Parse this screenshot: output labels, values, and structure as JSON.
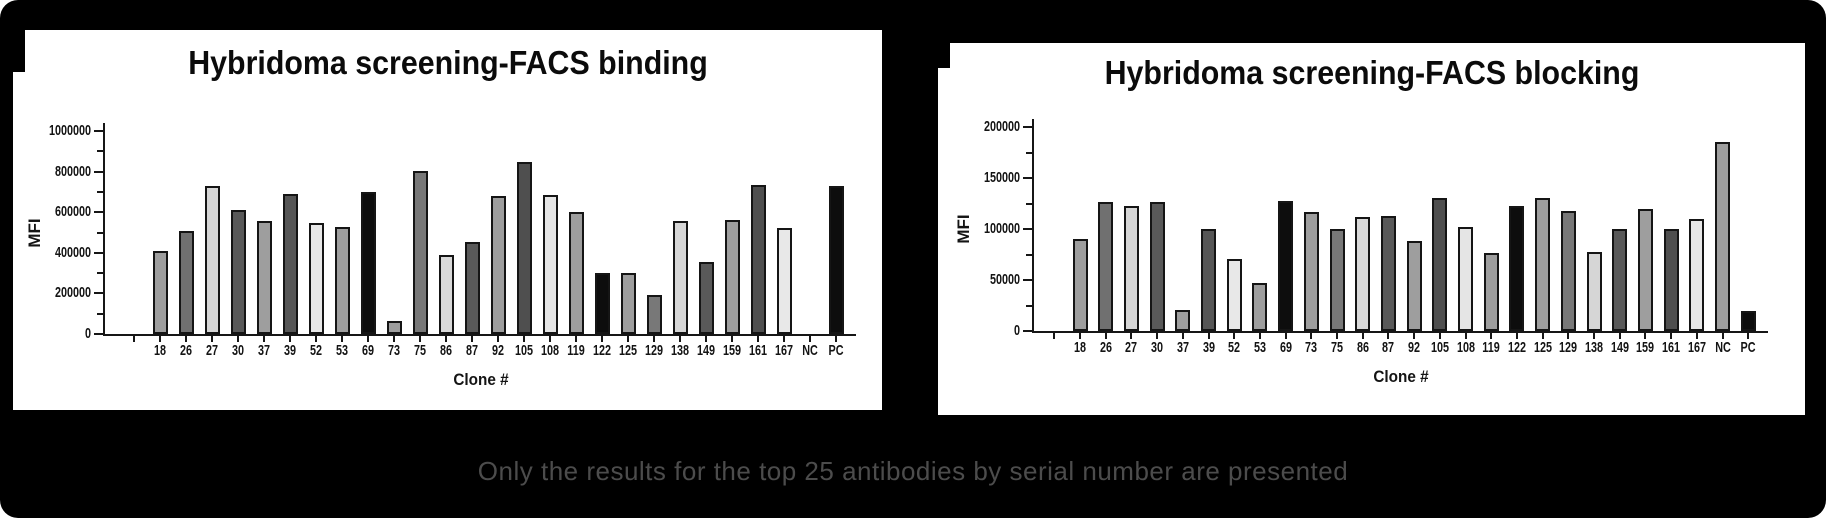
{
  "caption": {
    "text": "Only the results for the top 25 antibodies by serial number are presented"
  },
  "colors": {
    "background": "#000000",
    "panel": "#ffffff",
    "caption_text": "#4c4c4c",
    "bar_border": "#151515",
    "axis": "#161616"
  },
  "chart_data": [
    {
      "type": "bar",
      "title": "Hybridoma screening-FACS binding",
      "xlabel": "Clone #",
      "ylabel": "MFI",
      "ylim": [
        0,
        1000000
      ],
      "ytick_step": 200000,
      "grid": false,
      "legend": false,
      "categories": [
        "18",
        "26",
        "27",
        "30",
        "37",
        "39",
        "52",
        "53",
        "69",
        "73",
        "75",
        "86",
        "87",
        "92",
        "105",
        "108",
        "119",
        "122",
        "125",
        "129",
        "138",
        "149",
        "159",
        "161",
        "167",
        "NC",
        "PC"
      ],
      "values": [
        410000,
        505000,
        730000,
        610000,
        555000,
        690000,
        545000,
        525000,
        700000,
        65000,
        805000,
        390000,
        455000,
        680000,
        845000,
        685000,
        600000,
        300000,
        300000,
        190000,
        555000,
        355000,
        560000,
        735000,
        520000,
        0,
        730000
      ],
      "bar_colors": [
        "#9e9e9e",
        "#707070",
        "#d6d6d6",
        "#595959",
        "#9e9e9e",
        "#565656",
        "#e8e8e8",
        "#9e9e9e",
        "#0d0d0d",
        "#9e9e9e",
        "#787878",
        "#d9d9d9",
        "#595959",
        "#9e9e9e",
        "#4f4f4f",
        "#e5e5e5",
        "#9e9e9e",
        "#0d0d0d",
        "#9e9e9e",
        "#787878",
        "#d6d6d6",
        "#595959",
        "#9e9e9e",
        "#4f4f4f",
        "#e8e8e8",
        "#9e9e9e",
        "#0d0d0d"
      ]
    },
    {
      "type": "bar",
      "title": "Hybridoma screening-FACS blocking",
      "xlabel": "Clone #",
      "ylabel": "MFI",
      "ylim": [
        0,
        200000
      ],
      "ytick_step": 50000,
      "grid": false,
      "legend": false,
      "categories": [
        "18",
        "26",
        "27",
        "30",
        "37",
        "39",
        "52",
        "53",
        "69",
        "73",
        "75",
        "86",
        "87",
        "92",
        "105",
        "108",
        "119",
        "122",
        "125",
        "129",
        "138",
        "149",
        "159",
        "161",
        "167",
        "NC",
        "PC"
      ],
      "values": [
        90000,
        126000,
        123000,
        126000,
        21000,
        100000,
        71000,
        47000,
        127000,
        117000,
        100000,
        112000,
        113000,
        88000,
        130000,
        102000,
        76000,
        123000,
        130000,
        118000,
        77000,
        100000,
        120000,
        100000,
        110000,
        185000,
        20000
      ],
      "bar_colors": [
        "#9e9e9e",
        "#707070",
        "#d6d6d6",
        "#595959",
        "#9e9e9e",
        "#565656",
        "#e8e8e8",
        "#9e9e9e",
        "#0d0d0d",
        "#9e9e9e",
        "#787878",
        "#d9d9d9",
        "#595959",
        "#9e9e9e",
        "#4f4f4f",
        "#e5e5e5",
        "#9e9e9e",
        "#0d0d0d",
        "#9e9e9e",
        "#787878",
        "#d6d6d6",
        "#595959",
        "#9e9e9e",
        "#4f4f4f",
        "#e8e8e8",
        "#9e9e9e",
        "#0d0d0d"
      ]
    }
  ]
}
